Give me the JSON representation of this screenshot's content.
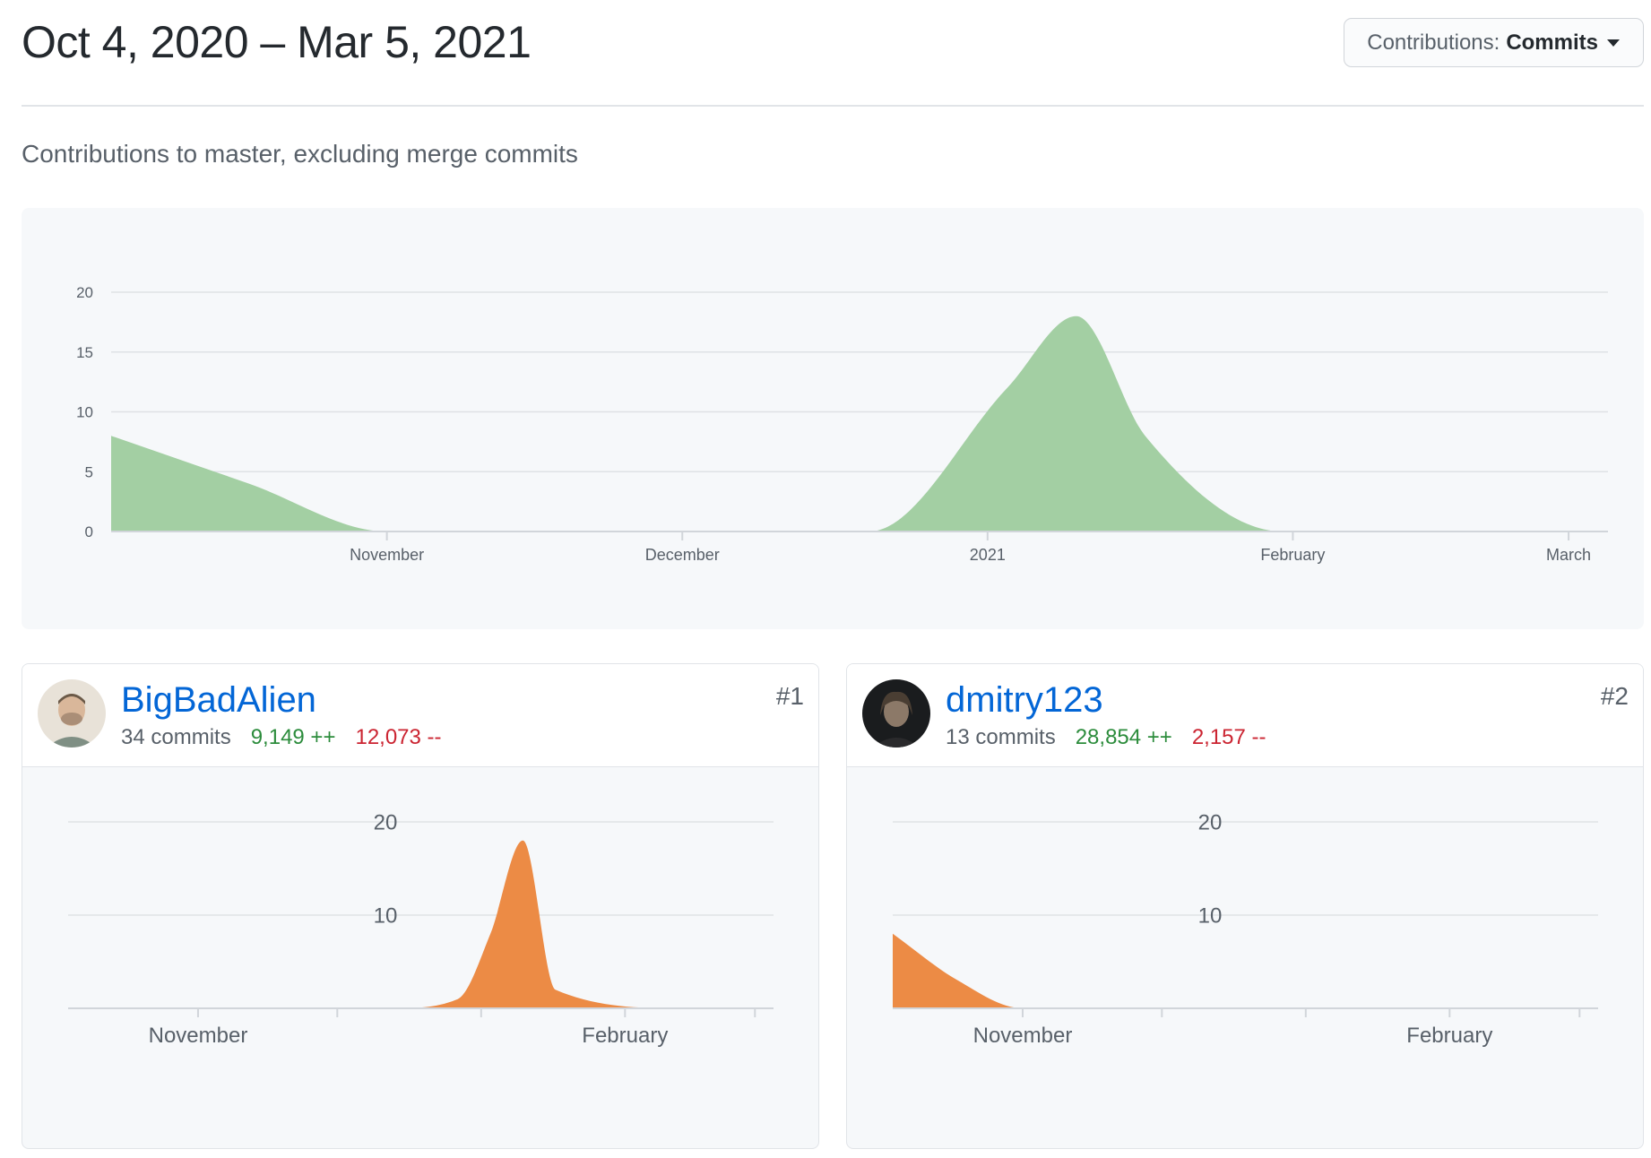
{
  "header": {
    "date_range": "Oct 4, 2020 – Mar 5, 2021",
    "dropdown_label": "Contributions:",
    "dropdown_value": "Commits"
  },
  "subtitle": "Contributions to master, excluding merge commits",
  "colors": {
    "main_area": "#a3cfa3",
    "contributor_area": "#ec8b45",
    "additions": "#2c8c3c",
    "deletions": "#cb2431",
    "link": "#0366d6"
  },
  "chart_data": [
    {
      "type": "area",
      "title": "",
      "x_tick_labels": [
        "November",
        "December",
        "2021",
        "February",
        "March"
      ],
      "x": [
        "2020-10-04",
        "2020-10-18",
        "2020-11-01",
        "2020-11-15",
        "2020-12-06",
        "2020-12-20",
        "2021-01-03",
        "2021-01-10",
        "2021-01-17",
        "2021-01-31",
        "2021-02-14",
        "2021-03-01"
      ],
      "series": [
        {
          "values": [
            8,
            4,
            0,
            0,
            0,
            0,
            12,
            18,
            8,
            0,
            0,
            0
          ]
        }
      ],
      "ylim": [
        0,
        20
      ],
      "y_ticks": [
        0,
        5,
        10,
        15,
        20
      ],
      "grid": true
    },
    {
      "type": "area",
      "title": "",
      "x_tick_labels": [
        "November",
        "February"
      ],
      "x": [
        "2020-10-04",
        "2020-11-15",
        "2020-12-13",
        "2020-12-27",
        "2021-01-03",
        "2021-01-10",
        "2021-01-17",
        "2021-02-14",
        "2021-03-05"
      ],
      "series": [
        {
          "values": [
            0,
            0,
            0,
            1,
            8,
            18,
            2,
            0,
            0
          ]
        }
      ],
      "ylim": [
        0,
        20
      ],
      "y_ticks": [
        10,
        20
      ],
      "grid": true
    },
    {
      "type": "area",
      "title": "",
      "x_tick_labels": [
        "November",
        "February"
      ],
      "x": [
        "2020-10-04",
        "2020-10-18",
        "2020-11-01",
        "2020-12-01",
        "2021-01-01",
        "2021-02-01",
        "2021-03-05"
      ],
      "series": [
        {
          "values": [
            8,
            3,
            0,
            0,
            0,
            0,
            0
          ]
        }
      ],
      "ylim": [
        0,
        20
      ],
      "y_ticks": [
        10,
        20
      ],
      "grid": true
    }
  ],
  "contributors": [
    {
      "username": "BigBadAlien",
      "commits": "34 commits",
      "additions": "9,149 ++",
      "deletions": "12,073 --",
      "rank": "#1",
      "avatar": "avatar-photo"
    },
    {
      "username": "dmitry123",
      "commits": "13 commits",
      "additions": "28,854 ++",
      "deletions": "2,157 --",
      "rank": "#2",
      "avatar": "avatar-photo"
    }
  ]
}
